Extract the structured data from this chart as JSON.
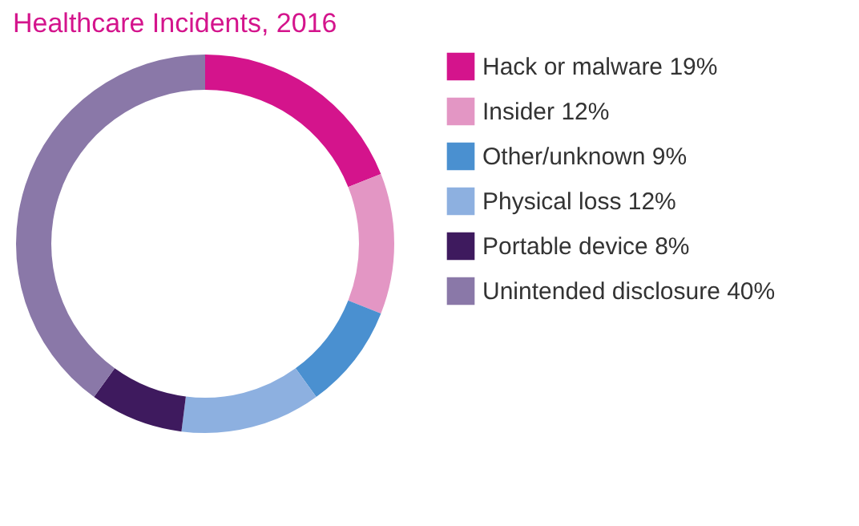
{
  "chart_data": {
    "type": "donut",
    "title": "Healthcare Incidents, 2016",
    "categories": [
      "Hack or malware 19%",
      "Insider 12%",
      "Other/unknown 9%",
      "Physical loss 12%",
      "Portable device 8%",
      "Unintended disclosure 40%"
    ],
    "values": [
      19,
      12,
      9,
      12,
      8,
      40
    ],
    "colors": [
      "#d4148c",
      "#e396c4",
      "#4a90d0",
      "#8db0e0",
      "#3e1a5e",
      "#8a78a8"
    ],
    "legend": "right"
  }
}
